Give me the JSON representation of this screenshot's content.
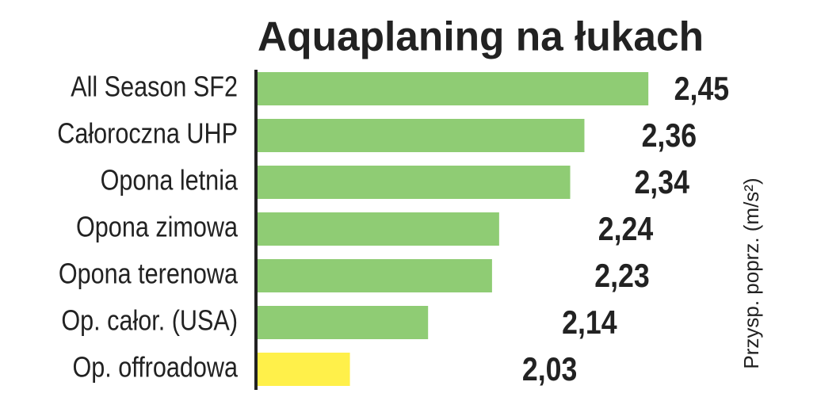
{
  "chart_data": {
    "type": "hbar",
    "title": "Aquaplaning na łukach",
    "x_label": "Przysp. poprz. (m/s²)",
    "categories": [
      "All Season SF2",
      "Całoroczna UHP",
      "Opona letnia",
      "Opona zimowa",
      "Opona terenowa",
      "Op. całor. (USA)",
      "Op. offroadowa"
    ],
    "values": [
      2.45,
      2.36,
      2.34,
      2.24,
      2.23,
      2.14,
      2.03
    ],
    "value_labels": [
      "2,45",
      "2,36",
      "2,34",
      "2,24",
      "2,23",
      "2,14",
      "2,03"
    ],
    "colors": [
      "#8fcc74",
      "#8fcc74",
      "#8fcc74",
      "#8fcc74",
      "#8fcc74",
      "#8fcc74",
      "#fff04a"
    ],
    "xlim": [
      1.9,
      2.5
    ]
  }
}
